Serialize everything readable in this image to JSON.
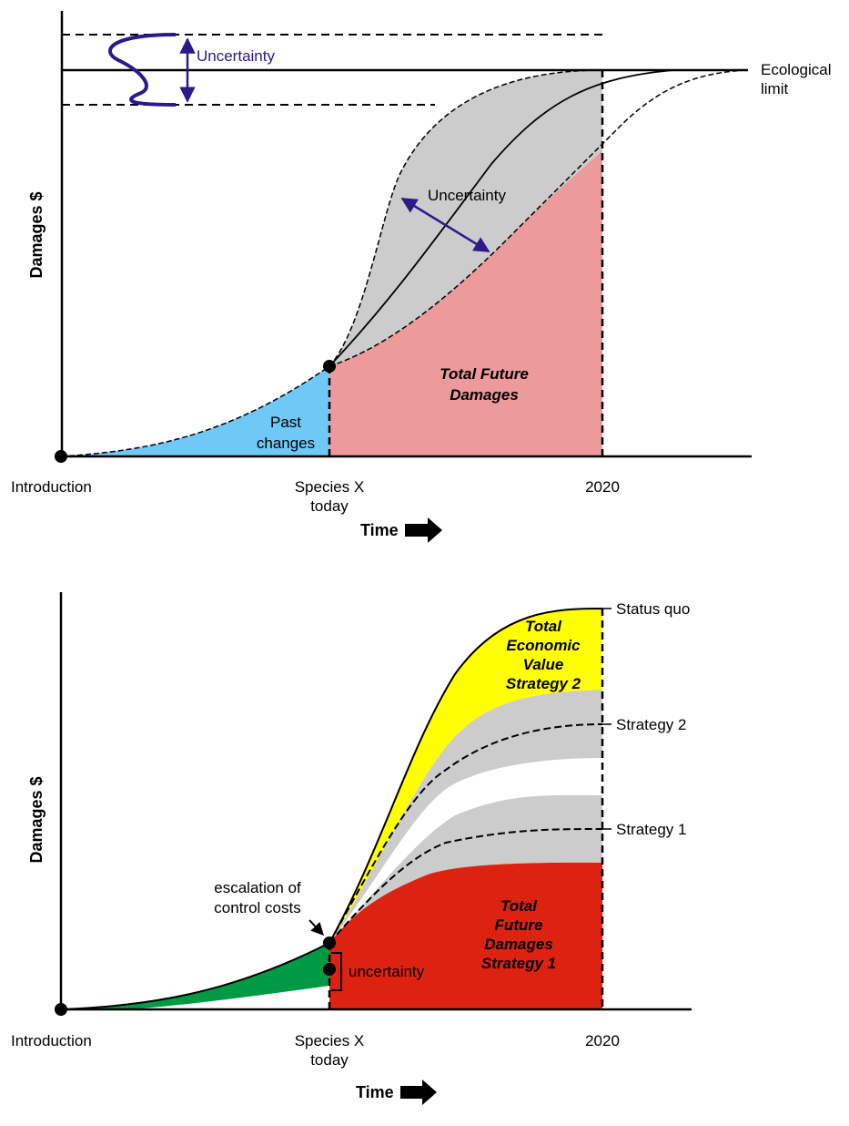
{
  "top_panel": {
    "ylabel": "Damages $",
    "uncertainty_top": "Uncertainty",
    "uncertainty_mid": "Uncertainty",
    "ecological_limit": [
      "Ecological",
      "limit"
    ],
    "past_changes": [
      "Past",
      "changes"
    ],
    "total_future_damages": [
      "Total Future",
      "Damages"
    ],
    "x_labels": {
      "introduction": "Introduction",
      "species_today": [
        "Species X",
        "today"
      ],
      "year": "2020"
    },
    "time_label": "Time"
  },
  "bottom_panel": {
    "ylabel": "Damages $",
    "status_quo": "Status quo",
    "strategy_2": "Strategy 2",
    "strategy_1": "Strategy 1",
    "total_economic_value": [
      "Total",
      "Economic",
      "Value",
      "Strategy 2"
    ],
    "total_future_damages": [
      "Total",
      "Future",
      "Damages",
      "Strategy 1"
    ],
    "escalation": [
      "escalation of",
      "control costs"
    ],
    "uncertainty": "uncertainty",
    "x_labels": {
      "introduction": "Introduction",
      "species_today": [
        "Species X",
        "today"
      ],
      "year": "2020"
    },
    "time_label": "Time"
  },
  "colors": {
    "past_blue": "#6fc8f6",
    "future_pink": "#ec9a9a",
    "uncertainty_gray": "#cccccc",
    "value_yellow": "#ffff00",
    "damages_red": "#dd2211",
    "past_green": "#009944",
    "arrow_purple": "#2a1a8a"
  }
}
